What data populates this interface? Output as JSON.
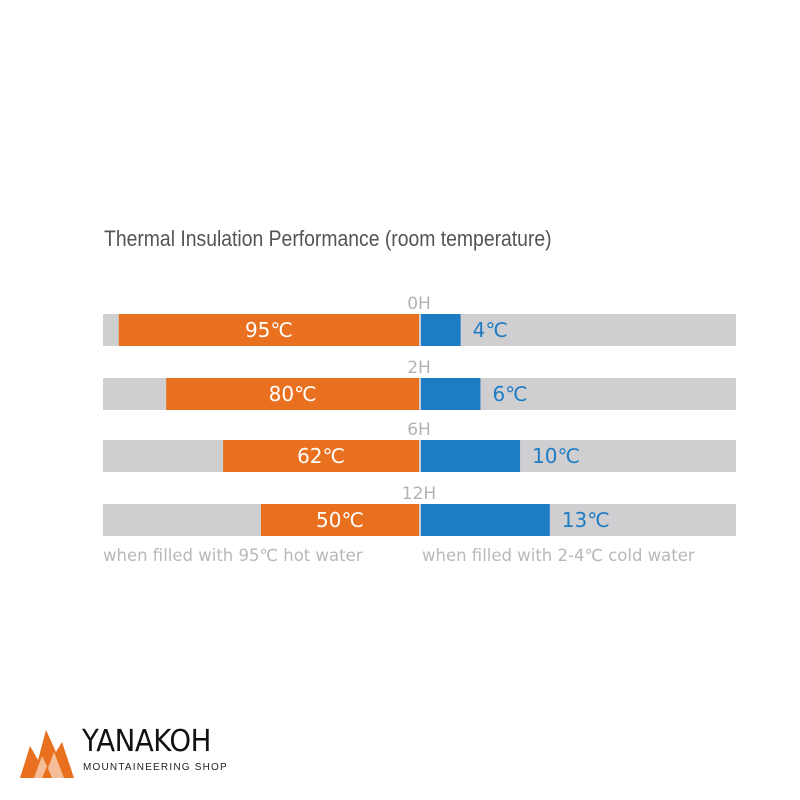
{
  "chart_data": {
    "type": "bar",
    "title": "Thermal Insulation Performance (room temperature)",
    "categories": [
      "0H",
      "2H",
      "6H",
      "12H"
    ],
    "series": [
      {
        "side": "left",
        "values": [
          95,
          80,
          62,
          50
        ],
        "labels": [
          "95℃",
          "80℃",
          "62℃",
          "50℃"
        ],
        "color": "#e8701e"
      },
      {
        "side": "right",
        "values": [
          4,
          6,
          10,
          13
        ],
        "labels": [
          "4℃",
          "6℃",
          "10℃",
          "13℃"
        ],
        "color": "#1d7cc3"
      }
    ],
    "caption_left": "when filled with 95℃ hot water",
    "caption_right": "when filled with 2-4℃ cold water",
    "track_color": "#cfcfd1",
    "ylim_left": [
      0,
      100
    ],
    "ylim_right": [
      0,
      32
    ]
  },
  "brand": {
    "name": "YANAKOH",
    "tagline": "MOUNTAINEERING SHOP",
    "icon": "flame-mountain-logo-icon",
    "icon_color": "#e8701e"
  }
}
